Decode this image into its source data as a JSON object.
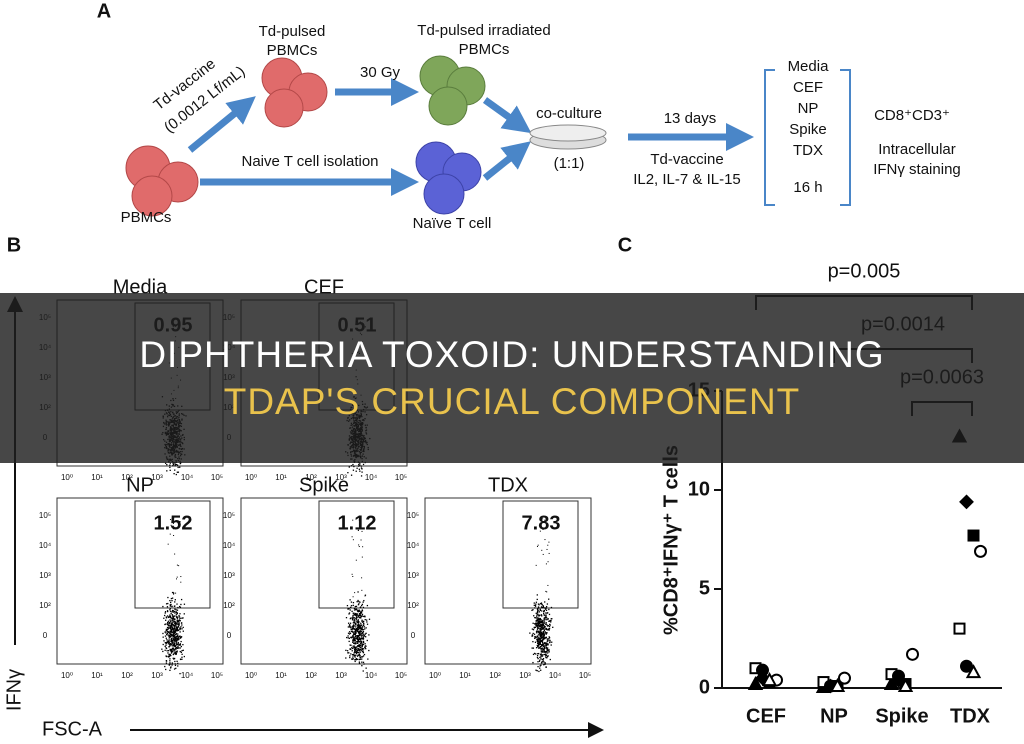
{
  "banner": {
    "lines": [
      "DIPHTHERIA TOXOID: UNDERSTANDING",
      "TDAP'S CRUCIAL COMPONENT"
    ]
  },
  "panel_a": {
    "label": "A",
    "td_pulsed": [
      "Td-pulsed",
      "PBMCs"
    ],
    "irradiated": [
      "Td-pulsed irradiated",
      "PBMCs"
    ],
    "vaccine": [
      "Td-vaccine",
      "(0.0012 Lf/mL)"
    ],
    "dose": "30 Gy",
    "coculture": [
      "co-culture",
      "(1:1)"
    ],
    "duration": "13 days",
    "culture_conditions": [
      "Td-vaccine",
      "IL2, IL-7 & IL-15"
    ],
    "isolation": "Naive T cell isolation",
    "pbmcs": "PBMCs",
    "naive": "Naïve T cell",
    "stimuli": [
      "Media",
      "CEF",
      "NP",
      "Spike",
      "TDX"
    ],
    "stim_time": "16 h",
    "readout": [
      "CD8⁺CD3⁺",
      "Intracellular",
      "IFNγ staining"
    ]
  },
  "panel_b": {
    "label": "B",
    "y_label": "IFNγ",
    "x_label": "FSC-A",
    "x_ticks": [
      "10⁰",
      "10¹",
      "10²",
      "10³",
      "10⁴",
      "10⁵"
    ],
    "y_ticks": [
      "10⁵",
      "10⁴",
      "10³",
      "10²",
      "0"
    ],
    "plots": [
      {
        "title": "Media",
        "gate": "0.95"
      },
      {
        "title": "CEF",
        "gate": "0.51"
      },
      {
        "title": "NP",
        "gate": "1.52"
      },
      {
        "title": "Spike",
        "gate": "1.12"
      },
      {
        "title": "TDX",
        "gate": "7.83"
      }
    ]
  },
  "chart_data": {
    "type": "dot",
    "label": "C",
    "y_label": "%CD8⁺IFNγ⁺ T cells",
    "categories": [
      "CEF",
      "NP",
      "Spike",
      "TDX"
    ],
    "ylim": [
      0,
      15
    ],
    "yticks": [
      0,
      5,
      10,
      15
    ],
    "series": [
      {
        "marker": "triangle",
        "filled": true,
        "values": [
          0.2,
          0.05,
          0.2,
          12.7
        ]
      },
      {
        "marker": "diamond",
        "filled": true,
        "values": [
          0.5,
          0.1,
          0.4,
          9.4
        ]
      },
      {
        "marker": "square",
        "filled": true,
        "values": [
          0.3,
          0.1,
          0.2,
          7.7
        ]
      },
      {
        "marker": "circle",
        "filled": false,
        "values": [
          0.4,
          0.5,
          1.7,
          6.9
        ]
      },
      {
        "marker": "square",
        "filled": false,
        "values": [
          1.0,
          0.3,
          0.7,
          3.0
        ]
      },
      {
        "marker": "circle",
        "filled": true,
        "values": [
          0.9,
          0.1,
          0.6,
          1.1
        ]
      },
      {
        "marker": "triangle",
        "filled": false,
        "values": [
          0.4,
          0.1,
          0.1,
          0.8
        ]
      }
    ],
    "comparisons": [
      {
        "from": 0,
        "to": 3,
        "label": "p=0.005"
      },
      {
        "from": 1,
        "to": 3,
        "label": "p=0.0014"
      },
      {
        "from": 2,
        "to": 3,
        "label": "p=0.0063"
      }
    ]
  }
}
